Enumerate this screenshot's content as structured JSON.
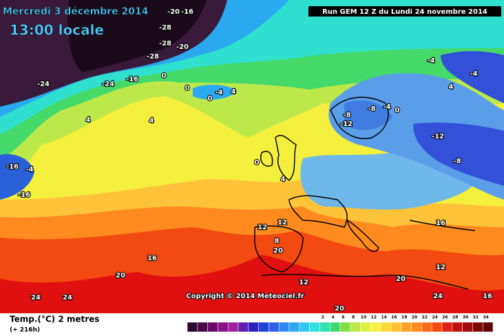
{
  "header": {
    "date": "Mercredi 3 décembre 2014",
    "time": "13:00 locale",
    "run": "Run GEM 12 Z du Lundi 24 novembre 2014"
  },
  "copyright": "Copyright © 2014 Meteociel.fr",
  "map": {
    "labels": [
      "-20",
      "-16",
      "-28",
      "-28",
      "-20",
      "-28",
      "-24",
      "-16",
      "-24",
      "0",
      "0",
      "0",
      "-4",
      "4",
      "4",
      "4",
      "-16",
      "-4",
      "-16",
      "0",
      "4",
      "-8",
      "-12",
      "-8",
      "-4",
      "0",
      "-12",
      "-8",
      "-4",
      "-4",
      "4",
      "12",
      "12",
      "16",
      "20",
      "20",
      "24",
      "24",
      "12",
      "16",
      "24",
      "20",
      "12",
      "16",
      "8",
      "20"
    ]
  },
  "footer": {
    "variable": "Temp.(°C) 2 metres",
    "lead": "(+ 216h)"
  },
  "legend": {
    "ticks": [
      2,
      4,
      6,
      8,
      10,
      12,
      14,
      16,
      18,
      20,
      22,
      24,
      26,
      28,
      30,
      32,
      34
    ]
  }
}
